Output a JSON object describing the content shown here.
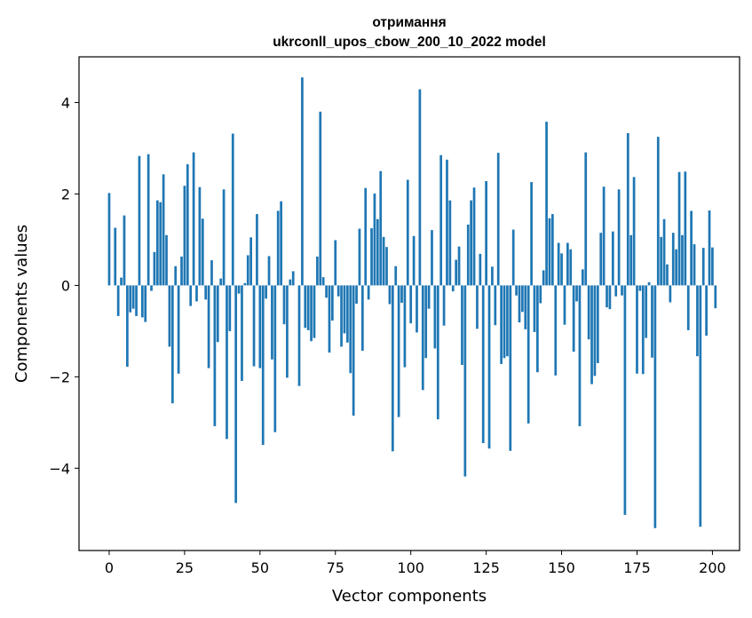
{
  "chart_data": {
    "type": "bar",
    "title": "отримання",
    "subtitle": "ukrconll_upos_cbow_200_10_2022 model",
    "xlabel": "Vector components",
    "ylabel": "Components values",
    "xlim": [
      -10,
      209
    ],
    "ylim": [
      -5.8,
      5.0
    ],
    "xticks": [
      0,
      25,
      50,
      75,
      100,
      125,
      150,
      175,
      200
    ],
    "yticks": [
      4,
      2,
      0,
      -2,
      -4
    ],
    "ytick_labels": [
      "4",
      "2",
      "0",
      "−2",
      "−4"
    ],
    "bar_color": "#1f77b4",
    "grid": false,
    "legend": "none",
    "series": [
      {
        "values": [
          2.02,
          0.0,
          1.26,
          -0.67,
          0.17,
          1.53,
          -1.78,
          -0.59,
          -0.51,
          -0.67,
          2.83,
          -0.7,
          -0.8,
          2.87,
          -0.12,
          0.73,
          1.86,
          1.82,
          2.43,
          1.1,
          -1.34,
          -2.58,
          0.42,
          -1.93,
          0.63,
          2.18,
          2.65,
          -0.45,
          2.91,
          -0.35,
          2.15,
          1.46,
          -0.31,
          -1.81,
          0.55,
          -3.08,
          -1.24,
          0.15,
          2.1,
          -3.36,
          -1.0,
          3.32,
          -4.76,
          -0.18,
          -2.09,
          0.05,
          0.66,
          1.05,
          -1.77,
          1.56,
          -1.81,
          -3.49,
          -0.29,
          0.64,
          -1.62,
          -3.21,
          1.63,
          1.84,
          -0.85,
          -2.02,
          0.13,
          0.31,
          0.0,
          -2.2,
          4.55,
          -0.93,
          -0.98,
          -1.22,
          -1.15,
          0.63,
          3.8,
          0.18,
          -0.27,
          -1.47,
          -0.77,
          0.99,
          -0.24,
          -1.34,
          -1.05,
          -1.25,
          -1.92,
          -2.85,
          -0.4,
          1.24,
          -1.43,
          2.13,
          -0.31,
          1.25,
          2.01,
          1.45,
          2.5,
          1.06,
          0.84,
          -0.41,
          -3.63,
          0.42,
          -2.88,
          -0.38,
          -1.79,
          2.31,
          -0.83,
          1.08,
          -1.03,
          4.29,
          -2.29,
          -1.59,
          -0.51,
          1.21,
          -1.38,
          -2.93,
          2.85,
          -0.88,
          2.75,
          1.86,
          -0.13,
          0.56,
          0.85,
          -1.74,
          -4.18,
          1.33,
          1.86,
          2.14,
          -0.95,
          0.69,
          -3.45,
          2.28,
          -3.57,
          0.41,
          -0.87,
          2.9,
          -1.72,
          -1.59,
          -1.55,
          -3.62,
          1.22,
          -0.22,
          -0.81,
          -0.58,
          -0.96,
          -3.02,
          2.26,
          -1.02,
          -1.9,
          -0.39,
          0.33,
          3.58,
          1.47,
          1.56,
          -1.97,
          0.93,
          0.7,
          -0.86,
          0.93,
          0.79,
          -1.45,
          -0.35,
          -3.08,
          0.35,
          2.91,
          -1.18,
          -2.16,
          -1.98,
          -1.7,
          1.15,
          2.16,
          -0.48,
          -0.52,
          1.18,
          -0.24,
          2.1,
          -0.22,
          -5.02,
          3.33,
          1.1,
          2.37,
          -1.93,
          -0.12,
          -1.94,
          -1.15,
          0.07,
          -1.58,
          -5.31,
          3.25,
          1.06,
          1.45,
          0.46,
          -0.37,
          1.15,
          0.79,
          2.48,
          1.1,
          2.49,
          -0.98,
          1.63,
          0.9,
          -1.55,
          -5.28,
          0.82,
          -1.1,
          1.64,
          0.83,
          -0.5
        ]
      }
    ]
  }
}
